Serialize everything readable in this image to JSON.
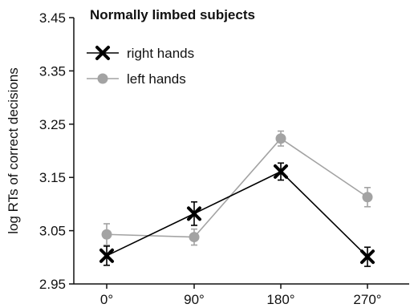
{
  "chart_data": {
    "type": "line",
    "title": "Normally limbed subjects",
    "xlabel": "",
    "ylabel": "log RTs of correct decisions",
    "categories": [
      "0°",
      "90°",
      "180°",
      "270°"
    ],
    "yticks": [
      "2.95",
      "3.05",
      "3.15",
      "3.25",
      "3.35",
      "3.45"
    ],
    "ylim": [
      2.95,
      3.45
    ],
    "grid": false,
    "legend_position": "top-left",
    "series": [
      {
        "name": "right hands",
        "values": [
          3.003,
          3.082,
          3.161,
          3.001
        ],
        "errors": [
          0.018,
          0.022,
          0.016,
          0.018
        ],
        "color": "#000000",
        "marker": "x-cross"
      },
      {
        "name": "left hands",
        "values": [
          3.043,
          3.038,
          3.223,
          3.113
        ],
        "errors": [
          0.02,
          0.015,
          0.014,
          0.018
        ],
        "color": "#a3a3a3",
        "marker": "circle"
      }
    ]
  }
}
